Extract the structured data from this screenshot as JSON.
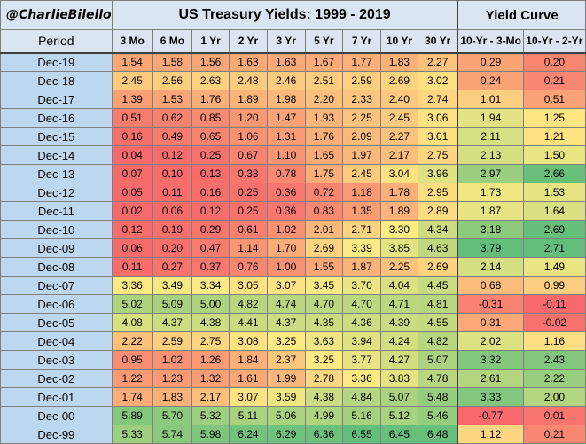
{
  "title": {
    "handle": "@CharlieBilello",
    "main": "US Treasury Yields: 1999 - 2019",
    "curve": "Yield Curve"
  },
  "headers": {
    "period": "Period",
    "maturities": [
      "3 Mo",
      "6 Mo",
      "1 Yr",
      "2 Yr",
      "3 Yr",
      "5 Yr",
      "7 Yr",
      "10 Yr",
      "30 Yr"
    ],
    "curve": [
      "10-Yr - 3-Mo",
      "10-Yr - 2-Yr"
    ]
  },
  "rows": [
    {
      "period": "Dec-19",
      "yields": [
        "1.54",
        "1.58",
        "1.56",
        "1.63",
        "1.63",
        "1.67",
        "1.77",
        "1.83",
        "2.27"
      ],
      "curve": [
        "0.29",
        "0.20"
      ]
    },
    {
      "period": "Dec-18",
      "yields": [
        "2.45",
        "2.56",
        "2.63",
        "2.48",
        "2.46",
        "2.51",
        "2.59",
        "2.69",
        "3.02"
      ],
      "curve": [
        "0.24",
        "0.21"
      ]
    },
    {
      "period": "Dec-17",
      "yields": [
        "1.39",
        "1.53",
        "1.76",
        "1.89",
        "1.98",
        "2.20",
        "2.33",
        "2.40",
        "2.74"
      ],
      "curve": [
        "1.01",
        "0.51"
      ]
    },
    {
      "period": "Dec-16",
      "yields": [
        "0.51",
        "0.62",
        "0.85",
        "1.20",
        "1.47",
        "1.93",
        "2.25",
        "2.45",
        "3.06"
      ],
      "curve": [
        "1.94",
        "1.25"
      ]
    },
    {
      "period": "Dec-15",
      "yields": [
        "0.16",
        "0.49",
        "0.65",
        "1.06",
        "1.31",
        "1.76",
        "2.09",
        "2.27",
        "3.01"
      ],
      "curve": [
        "2.11",
        "1.21"
      ]
    },
    {
      "period": "Dec-14",
      "yields": [
        "0.04",
        "0.12",
        "0.25",
        "0.67",
        "1.10",
        "1.65",
        "1.97",
        "2.17",
        "2.75"
      ],
      "curve": [
        "2.13",
        "1.50"
      ]
    },
    {
      "period": "Dec-13",
      "yields": [
        "0.07",
        "0.10",
        "0.13",
        "0.38",
        "0.78",
        "1.75",
        "2.45",
        "3.04",
        "3.96"
      ],
      "curve": [
        "2.97",
        "2.66"
      ]
    },
    {
      "period": "Dec-12",
      "yields": [
        "0.05",
        "0.11",
        "0.16",
        "0.25",
        "0.36",
        "0.72",
        "1.18",
        "1.78",
        "2.95"
      ],
      "curve": [
        "1.73",
        "1.53"
      ]
    },
    {
      "period": "Dec-11",
      "yields": [
        "0.02",
        "0.06",
        "0.12",
        "0.25",
        "0.36",
        "0.83",
        "1.35",
        "1.89",
        "2.89"
      ],
      "curve": [
        "1.87",
        "1.64"
      ]
    },
    {
      "period": "Dec-10",
      "yields": [
        "0.12",
        "0.19",
        "0.29",
        "0.61",
        "1.02",
        "2.01",
        "2.71",
        "3.30",
        "4.34"
      ],
      "curve": [
        "3.18",
        "2.69"
      ]
    },
    {
      "period": "Dec-09",
      "yields": [
        "0.06",
        "0.20",
        "0.47",
        "1.14",
        "1.70",
        "2.69",
        "3.39",
        "3.85",
        "4.63"
      ],
      "curve": [
        "3.79",
        "2.71"
      ]
    },
    {
      "period": "Dec-08",
      "yields": [
        "0.11",
        "0.27",
        "0.37",
        "0.76",
        "1.00",
        "1.55",
        "1.87",
        "2.25",
        "2.69"
      ],
      "curve": [
        "2.14",
        "1.49"
      ]
    },
    {
      "period": "Dec-07",
      "yields": [
        "3.36",
        "3.49",
        "3.34",
        "3.05",
        "3.07",
        "3.45",
        "3.70",
        "4.04",
        "4.45"
      ],
      "curve": [
        "0.68",
        "0.99"
      ]
    },
    {
      "period": "Dec-06",
      "yields": [
        "5.02",
        "5.09",
        "5.00",
        "4.82",
        "4.74",
        "4.70",
        "4.70",
        "4.71",
        "4.81"
      ],
      "curve": [
        "-0.31",
        "-0.11"
      ]
    },
    {
      "period": "Dec-05",
      "yields": [
        "4.08",
        "4.37",
        "4.38",
        "4.41",
        "4.37",
        "4.35",
        "4.36",
        "4.39",
        "4.55"
      ],
      "curve": [
        "0.31",
        "-0.02"
      ]
    },
    {
      "period": "Dec-04",
      "yields": [
        "2.22",
        "2.59",
        "2.75",
        "3.08",
        "3.25",
        "3.63",
        "3.94",
        "4.24",
        "4.82"
      ],
      "curve": [
        "2.02",
        "1.16"
      ]
    },
    {
      "period": "Dec-03",
      "yields": [
        "0.95",
        "1.02",
        "1.26",
        "1.84",
        "2.37",
        "3.25",
        "3.77",
        "4.27",
        "5.07"
      ],
      "curve": [
        "3.32",
        "2.43"
      ]
    },
    {
      "period": "Dec-02",
      "yields": [
        "1.22",
        "1.23",
        "1.32",
        "1.61",
        "1.99",
        "2.78",
        "3.36",
        "3.83",
        "4.78"
      ],
      "curve": [
        "2.61",
        "2.22"
      ]
    },
    {
      "period": "Dec-01",
      "yields": [
        "1.74",
        "1.83",
        "2.17",
        "3.07",
        "3.59",
        "4.38",
        "4.84",
        "5.07",
        "5.48"
      ],
      "curve": [
        "3.33",
        "2.00"
      ]
    },
    {
      "period": "Dec-00",
      "yields": [
        "5.89",
        "5.70",
        "5.32",
        "5.11",
        "5.06",
        "4.99",
        "5.16",
        "5.12",
        "5.46"
      ],
      "curve": [
        "-0.77",
        "0.01"
      ]
    },
    {
      "period": "Dec-99",
      "yields": [
        "5.33",
        "5.74",
        "5.98",
        "6.24",
        "6.29",
        "6.36",
        "6.55",
        "6.45",
        "6.48"
      ],
      "curve": [
        "1.12",
        "0.21"
      ]
    }
  ],
  "colors": {
    "low": "#f8696b",
    "mid": "#ffeb84",
    "high": "#63be7b",
    "header_bg": "#dbe5f1",
    "period_bg": "#bdd7ee"
  }
}
